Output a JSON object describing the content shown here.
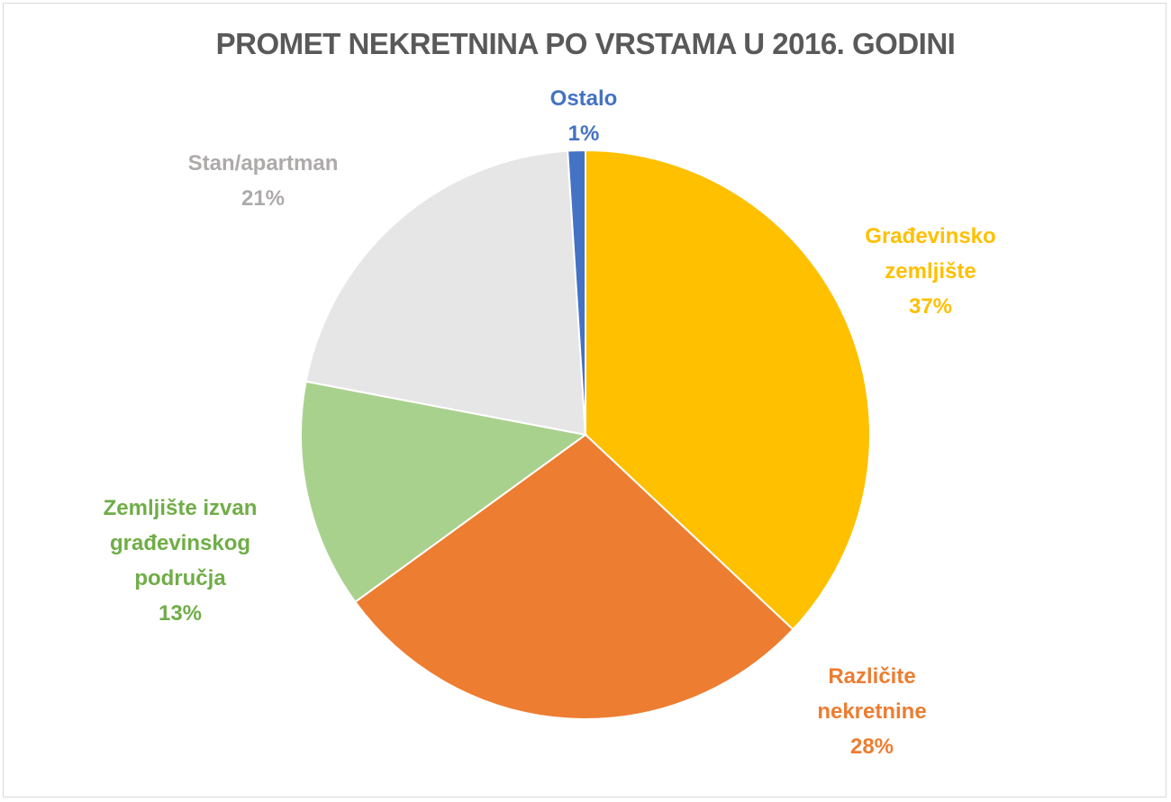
{
  "chart_data": {
    "type": "pie",
    "title": "PROMET NEKRETNINA PO VRSTAMA U 2016. GODINI",
    "start_angle": "12 o'clock",
    "direction": "clockwise",
    "slices": [
      {
        "label_lines": [
          "Građevinsko",
          "zemljište"
        ],
        "label": "Građevinsko zemljište",
        "value": 37,
        "value_label": "37%",
        "color": "#FFC000",
        "text_color": "#FFC000"
      },
      {
        "label_lines": [
          "Različite",
          "nekretnine"
        ],
        "label": "Različite nekretnine",
        "value": 28,
        "value_label": "28%",
        "color": "#ED7D31",
        "text_color": "#ED7D31"
      },
      {
        "label_lines": [
          "Zemljište izvan",
          "građevinskog",
          "područja"
        ],
        "label": "Zemljište izvan građevinskog područja",
        "value": 13,
        "value_label": "13%",
        "color": "#A9D18E",
        "text_color": "#70AD47"
      },
      {
        "label_lines": [
          "Stan/apartman"
        ],
        "label": "Stan/apartman",
        "value": 21,
        "value_label": "21%",
        "color": "#E7E6E6",
        "text_color": "#AEAAAA"
      },
      {
        "label_lines": [
          "Ostalo"
        ],
        "label": "Ostalo",
        "value": 1,
        "value_label": "1%",
        "color": "#4472C4",
        "text_color": "#4472C4"
      }
    ]
  }
}
